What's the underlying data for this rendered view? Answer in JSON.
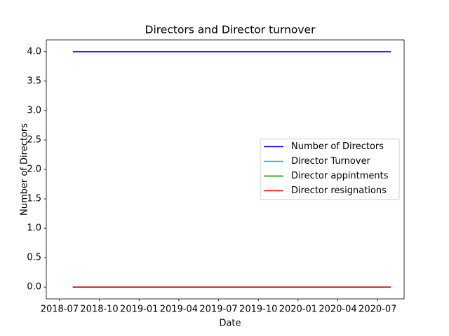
{
  "chart_data": {
    "type": "line",
    "title": "Directors and Director turnover",
    "x_label": "Date",
    "y_label": "Number of Directors",
    "x": [
      "2018-08",
      "2018-09",
      "2018-10",
      "2018-11",
      "2018-12",
      "2019-01",
      "2019-02",
      "2019-03",
      "2019-04",
      "2019-05",
      "2019-06",
      "2019-07",
      "2019-08",
      "2019-09",
      "2019-10",
      "2019-11",
      "2019-12",
      "2020-01",
      "2020-02",
      "2020-03",
      "2020-04",
      "2020-05",
      "2020-06",
      "2020-07",
      "2020-08"
    ],
    "series": [
      {
        "name": "Number of Directors",
        "color": "#0000ff",
        "values": [
          4,
          4,
          4,
          4,
          4,
          4,
          4,
          4,
          4,
          4,
          4,
          4,
          4,
          4,
          4,
          4,
          4,
          4,
          4,
          4,
          4,
          4,
          4,
          4,
          4
        ]
      },
      {
        "name": "Director Turnover",
        "color": "#00bfbf",
        "values": [
          0,
          0,
          0,
          0,
          0,
          0,
          0,
          0,
          0,
          0,
          0,
          0,
          0,
          0,
          0,
          0,
          0,
          0,
          0,
          0,
          0,
          0,
          0,
          0,
          0
        ]
      },
      {
        "name": "Director appintments",
        "color": "#008000",
        "values": [
          0,
          0,
          0,
          0,
          0,
          0,
          0,
          0,
          0,
          0,
          0,
          0,
          0,
          0,
          0,
          0,
          0,
          0,
          0,
          0,
          0,
          0,
          0,
          0,
          0
        ]
      },
      {
        "name": "Director resignations",
        "color": "#ff0000",
        "values": [
          0,
          0,
          0,
          0,
          0,
          0,
          0,
          0,
          0,
          0,
          0,
          0,
          0,
          0,
          0,
          0,
          0,
          0,
          0,
          0,
          0,
          0,
          0,
          0,
          0
        ]
      }
    ],
    "xlim": [
      "2018-06",
      "2020-09"
    ],
    "xticks": [
      "2018-07",
      "2018-10",
      "2019-01",
      "2019-04",
      "2019-07",
      "2019-10",
      "2020-01",
      "2020-04",
      "2020-07"
    ],
    "ylim": [
      -0.2,
      4.2
    ],
    "yticks": [
      {
        "value": 0,
        "label": "0.0"
      },
      {
        "value": 0.5,
        "label": "0.5"
      },
      {
        "value": 1,
        "label": "1.0"
      },
      {
        "value": 1.5,
        "label": "1.5"
      },
      {
        "value": 2,
        "label": "2.0"
      },
      {
        "value": 2.5,
        "label": "2.5"
      },
      {
        "value": 3,
        "label": "3.0"
      },
      {
        "value": 3.5,
        "label": "3.5"
      },
      {
        "value": 4,
        "label": "4.0"
      }
    ],
    "grid": false,
    "legend": "center right"
  }
}
